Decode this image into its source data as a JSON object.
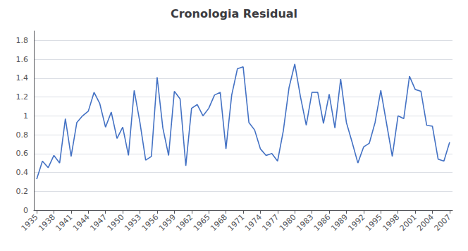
{
  "chart_data": {
    "type": "line",
    "title": "Cronologia Residual",
    "x": [
      1935,
      1936,
      1937,
      1938,
      1939,
      1940,
      1941,
      1942,
      1943,
      1944,
      1945,
      1946,
      1947,
      1948,
      1949,
      1950,
      1951,
      1952,
      1953,
      1954,
      1955,
      1956,
      1957,
      1958,
      1959,
      1960,
      1961,
      1962,
      1963,
      1964,
      1965,
      1966,
      1967,
      1968,
      1969,
      1970,
      1971,
      1972,
      1973,
      1974,
      1975,
      1976,
      1977,
      1978,
      1979,
      1980,
      1981,
      1982,
      1983,
      1984,
      1985,
      1986,
      1987,
      1988,
      1989,
      1990,
      1991,
      1992,
      1993,
      1994,
      1995,
      1996,
      1997,
      1998,
      1999,
      2000,
      2001,
      2002,
      2003,
      2004,
      2005,
      2006,
      2007
    ],
    "values": [
      0.33,
      0.52,
      0.45,
      0.58,
      0.5,
      0.97,
      0.57,
      0.93,
      1.0,
      1.05,
      1.25,
      1.13,
      0.88,
      1.04,
      0.76,
      0.88,
      0.58,
      1.27,
      0.93,
      0.53,
      0.57,
      1.41,
      0.87,
      0.58,
      1.26,
      1.18,
      0.47,
      1.08,
      1.12,
      1.0,
      1.08,
      1.22,
      1.25,
      0.65,
      1.22,
      1.5,
      1.52,
      0.93,
      0.85,
      0.65,
      0.58,
      0.6,
      0.52,
      0.84,
      1.3,
      1.55,
      1.2,
      0.9,
      1.25,
      1.25,
      0.92,
      1.23,
      0.87,
      1.39,
      0.93,
      0.72,
      0.5,
      0.67,
      0.71,
      0.93,
      1.27,
      0.92,
      0.57,
      1.0,
      0.97,
      1.42,
      1.28,
      1.26,
      0.9,
      0.89,
      0.54,
      0.52,
      0.72
    ],
    "color": "#4472c4",
    "xlim": [
      1934.5,
      2007.5
    ],
    "xticks": [
      1935,
      1938,
      1941,
      1944,
      1947,
      1950,
      1953,
      1956,
      1959,
      1962,
      1965,
      1968,
      1971,
      1974,
      1977,
      1980,
      1983,
      1986,
      1989,
      1992,
      1995,
      1998,
      2001,
      2004,
      2007
    ],
    "ylim": [
      0,
      1.9
    ],
    "yticks": [
      0,
      0.2,
      0.4,
      0.6,
      0.8,
      1,
      1.2,
      1.4,
      1.6,
      1.8
    ],
    "grid": true
  }
}
